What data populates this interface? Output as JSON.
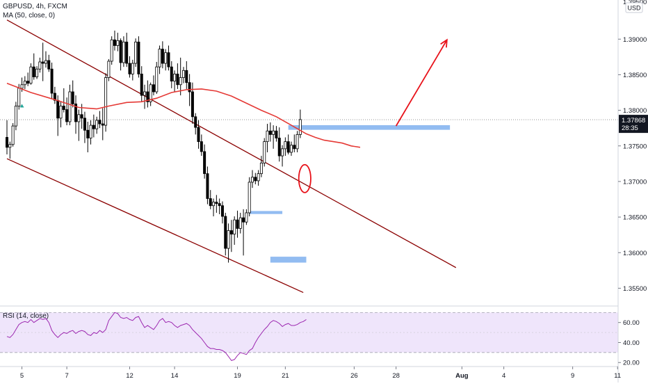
{
  "symbol_legend": "GBPUSD, 4h, FXCM",
  "ma_legend": "MA (50, close, 0)",
  "rsi_legend": "RSI (14, close)",
  "currency_badge": "USD",
  "price_top_partial": "1.39500",
  "price_label": {
    "price": "1.37868",
    "countdown": "28:35"
  },
  "colors": {
    "up_candle": "#ffffff",
    "down_candle": "#000000",
    "wick": "#000000",
    "ma_line": "#e53935",
    "channel_line": "#8b0000",
    "zone": "#7fb0ef",
    "arrow": "#e8121a",
    "rsi_line": "#9c27b0",
    "rsi_band": "#efe5fb",
    "last_price_bg": "#131722",
    "marker": "#26a69a"
  },
  "chart_data": [
    {
      "type": "candlestick",
      "title": "GBPUSD, 4h, FXCM",
      "ylim": [
        1.3525,
        1.3955
      ],
      "y_ticks": [
        "1.39000",
        "1.38500",
        "1.38000",
        "1.37500",
        "1.37000",
        "1.36500",
        "1.36000",
        "1.35500"
      ],
      "x_ticks": [
        "5",
        "7",
        "12",
        "14",
        "19",
        "21",
        "26",
        "28",
        "Aug",
        "4",
        "9",
        "11"
      ],
      "last_price": 1.37868,
      "grid": false,
      "candles": [
        [
          1.3762,
          1.3786,
          1.3738,
          1.3748
        ],
        [
          1.3748,
          1.3756,
          1.3732,
          1.3752
        ],
        [
          1.3752,
          1.3782,
          1.3749,
          1.3778
        ],
        [
          1.3778,
          1.3812,
          1.3772,
          1.3806
        ],
        [
          1.3806,
          1.3837,
          1.3801,
          1.3831
        ],
        [
          1.3831,
          1.3846,
          1.3826,
          1.3836
        ],
        [
          1.3836,
          1.3848,
          1.383,
          1.3841
        ],
        [
          1.3841,
          1.3853,
          1.3834,
          1.3838
        ],
        [
          1.3838,
          1.3866,
          1.3836,
          1.3861
        ],
        [
          1.3861,
          1.388,
          1.3843,
          1.3847
        ],
        [
          1.3847,
          1.3862,
          1.3844,
          1.3858
        ],
        [
          1.3858,
          1.3874,
          1.3853,
          1.3868
        ],
        [
          1.3868,
          1.3895,
          1.3841,
          1.3866
        ],
        [
          1.3866,
          1.3883,
          1.386,
          1.387
        ],
        [
          1.387,
          1.3878,
          1.3854,
          1.3858
        ],
        [
          1.3858,
          1.3867,
          1.3816,
          1.3824
        ],
        [
          1.3824,
          1.3833,
          1.3809,
          1.3814
        ],
        [
          1.3814,
          1.3821,
          1.3764,
          1.3789
        ],
        [
          1.3789,
          1.3812,
          1.3776,
          1.3806
        ],
        [
          1.3806,
          1.3831,
          1.3797,
          1.3801
        ],
        [
          1.3801,
          1.3818,
          1.3779,
          1.3784
        ],
        [
          1.3784,
          1.3836,
          1.3779,
          1.3826
        ],
        [
          1.3826,
          1.3842,
          1.3804,
          1.3809
        ],
        [
          1.3809,
          1.3821,
          1.3767,
          1.3784
        ],
        [
          1.3784,
          1.3801,
          1.3757,
          1.3794
        ],
        [
          1.3794,
          1.3809,
          1.3774,
          1.3789
        ],
        [
          1.3789,
          1.3798,
          1.3754,
          1.3772
        ],
        [
          1.3772,
          1.3784,
          1.3741,
          1.3761
        ],
        [
          1.3761,
          1.3786,
          1.3752,
          1.3779
        ],
        [
          1.3779,
          1.3794,
          1.3762,
          1.3774
        ],
        [
          1.3774,
          1.3791,
          1.3767,
          1.3786
        ],
        [
          1.3786,
          1.3799,
          1.3775,
          1.3781
        ],
        [
          1.3781,
          1.3803,
          1.3758,
          1.3779
        ],
        [
          1.3779,
          1.3852,
          1.377,
          1.3846
        ],
        [
          1.3846,
          1.3872,
          1.3841,
          1.3869
        ],
        [
          1.3869,
          1.3904,
          1.3864,
          1.3899
        ],
        [
          1.3899,
          1.3912,
          1.3884,
          1.3891
        ],
        [
          1.3891,
          1.3909,
          1.3883,
          1.3898
        ],
        [
          1.3898,
          1.3901,
          1.3856,
          1.3867
        ],
        [
          1.3867,
          1.3904,
          1.3861,
          1.3896
        ],
        [
          1.3896,
          1.3909,
          1.3861,
          1.3866
        ],
        [
          1.3866,
          1.3876,
          1.3846,
          1.3851
        ],
        [
          1.3851,
          1.3871,
          1.3842,
          1.3866
        ],
        [
          1.3866,
          1.3901,
          1.3861,
          1.3896
        ],
        [
          1.3896,
          1.3904,
          1.3846,
          1.3851
        ],
        [
          1.3851,
          1.3862,
          1.3812,
          1.3821
        ],
        [
          1.3821,
          1.3836,
          1.3802,
          1.3826
        ],
        [
          1.3826,
          1.3842,
          1.3804,
          1.3812
        ],
        [
          1.3812,
          1.3839,
          1.3806,
          1.3836
        ],
        [
          1.3836,
          1.3849,
          1.3821,
          1.3826
        ],
        [
          1.3826,
          1.3868,
          1.3823,
          1.3861
        ],
        [
          1.3861,
          1.3891,
          1.3851,
          1.3886
        ],
        [
          1.3886,
          1.3897,
          1.3859,
          1.3866
        ],
        [
          1.3866,
          1.3886,
          1.3856,
          1.3881
        ],
        [
          1.3881,
          1.3891,
          1.3856,
          1.3861
        ],
        [
          1.3861,
          1.3869,
          1.3831,
          1.3841
        ],
        [
          1.3841,
          1.3856,
          1.3826,
          1.3851
        ],
        [
          1.3851,
          1.3866,
          1.383,
          1.3836
        ],
        [
          1.3836,
          1.3874,
          1.3821,
          1.3846
        ],
        [
          1.3846,
          1.3861,
          1.3838,
          1.3856
        ],
        [
          1.3856,
          1.3869,
          1.383,
          1.3839
        ],
        [
          1.3839,
          1.3851,
          1.3806,
          1.3826
        ],
        [
          1.3826,
          1.3839,
          1.3781,
          1.3791
        ],
        [
          1.3791,
          1.3796,
          1.3766,
          1.3776
        ],
        [
          1.3776,
          1.3786,
          1.3746,
          1.3756
        ],
        [
          1.3756,
          1.3766,
          1.3736,
          1.3742
        ],
        [
          1.3742,
          1.3752,
          1.3704,
          1.3711
        ],
        [
          1.3711,
          1.3721,
          1.3668,
          1.3676
        ],
        [
          1.3676,
          1.3688,
          1.3661,
          1.3666
        ],
        [
          1.3666,
          1.3676,
          1.3651,
          1.3671
        ],
        [
          1.3671,
          1.3681,
          1.3656,
          1.3669
        ],
        [
          1.3669,
          1.3676,
          1.3654,
          1.3666
        ],
        [
          1.3666,
          1.3672,
          1.3641,
          1.3651
        ],
        [
          1.3651,
          1.3656,
          1.3596,
          1.3606
        ],
        [
          1.3606,
          1.3641,
          1.3586,
          1.3631
        ],
        [
          1.3631,
          1.3646,
          1.3601,
          1.3626
        ],
        [
          1.3626,
          1.3651,
          1.3611,
          1.3646
        ],
        [
          1.3646,
          1.3659,
          1.3621,
          1.3634
        ],
        [
          1.3634,
          1.3656,
          1.3627,
          1.3649
        ],
        [
          1.3649,
          1.3661,
          1.3596,
          1.3643
        ],
        [
          1.3643,
          1.3661,
          1.3639,
          1.3656
        ],
        [
          1.3656,
          1.3706,
          1.3651,
          1.3699
        ],
        [
          1.3699,
          1.3716,
          1.3691,
          1.3706
        ],
        [
          1.3706,
          1.3712,
          1.3696,
          1.3701
        ],
        [
          1.3701,
          1.3716,
          1.3694,
          1.3711
        ],
        [
          1.3711,
          1.3736,
          1.3706,
          1.3726
        ],
        [
          1.3726,
          1.3761,
          1.3721,
          1.3756
        ],
        [
          1.3756,
          1.3781,
          1.3741,
          1.3771
        ],
        [
          1.3771,
          1.3783,
          1.3756,
          1.3766
        ],
        [
          1.3766,
          1.3779,
          1.3746,
          1.3771
        ],
        [
          1.3771,
          1.3778,
          1.3756,
          1.3761
        ],
        [
          1.3761,
          1.3776,
          1.3728,
          1.3736
        ],
        [
          1.3736,
          1.3751,
          1.3721,
          1.3746
        ],
        [
          1.3746,
          1.3762,
          1.3736,
          1.3756
        ],
        [
          1.3756,
          1.3766,
          1.3738,
          1.3741
        ],
        [
          1.3741,
          1.3756,
          1.3736,
          1.3751
        ],
        [
          1.3751,
          1.3766,
          1.3741,
          1.3746
        ],
        [
          1.3746,
          1.3771,
          1.3741,
          1.3766
        ],
        [
          1.3766,
          1.3801,
          1.3761,
          1.3787
        ]
      ],
      "ma50": [
        [
          0,
          1.3838
        ],
        [
          8,
          1.3825
        ],
        [
          16,
          1.3815
        ],
        [
          24,
          1.3804
        ],
        [
          30,
          1.3802
        ],
        [
          34,
          1.3806
        ],
        [
          40,
          1.3811
        ],
        [
          45,
          1.3812
        ],
        [
          50,
          1.3817
        ],
        [
          55,
          1.3825
        ],
        [
          60,
          1.3829
        ],
        [
          65,
          1.383
        ],
        [
          70,
          1.3827
        ],
        [
          75,
          1.382
        ],
        [
          80,
          1.381
        ],
        [
          85,
          1.38
        ],
        [
          90,
          1.3791
        ],
        [
          95,
          1.3779
        ],
        [
          100,
          1.3767
        ],
        [
          103,
          1.3762
        ],
        [
          106,
          1.3758
        ],
        [
          109,
          1.3756
        ],
        [
          112,
          1.3754
        ],
        [
          115,
          1.375
        ],
        [
          118,
          1.3748
        ]
      ],
      "annotations": {
        "channel_upper": [
          [
            0,
            1.3927
          ],
          [
            150,
            1.3579
          ]
        ],
        "channel_lower": [
          [
            0,
            1.3732
          ],
          [
            99,
            1.3544
          ]
        ],
        "resistance_zone": {
          "from": 94,
          "to": 148,
          "low": 1.37726,
          "high": 1.37791
        },
        "zone_mid": {
          "from": 81,
          "to": 92,
          "low": 1.36543,
          "high": 1.36585
        },
        "zone_low": {
          "from": 88,
          "to": 100,
          "low": 1.3586,
          "high": 1.35943
        },
        "arrow": [
          [
            130,
            1.3778
          ],
          [
            147,
            1.3899
          ]
        ],
        "highlight_ellipse": {
          "center": [
            99.5,
            1.3704
          ],
          "rx": 2.0,
          "ry": 0.00196
        }
      }
    },
    {
      "type": "line",
      "title": "RSI (14, close)",
      "ylim": [
        16,
        73
      ],
      "y_ticks": [
        "60.00",
        "40.00",
        "20.00"
      ],
      "band": [
        30,
        70
      ],
      "grid": false,
      "values": [
        46,
        45,
        48,
        53,
        58,
        60,
        61,
        60,
        63,
        60,
        62,
        64,
        63,
        64,
        60,
        52,
        48,
        45,
        48,
        50,
        49,
        51,
        52,
        49,
        51,
        52,
        51,
        48,
        47,
        50,
        49,
        52,
        50,
        53,
        62,
        66,
        70,
        69,
        65,
        64,
        65,
        63,
        62,
        65,
        66,
        60,
        55,
        57,
        55,
        53,
        57,
        62,
        64,
        60,
        61,
        60,
        57,
        55,
        57,
        58,
        59,
        57,
        53,
        50,
        47,
        44,
        40,
        36,
        34,
        34,
        33,
        33,
        32,
        30,
        26,
        22,
        23,
        27,
        30,
        29,
        28,
        32,
        34,
        40,
        45,
        49,
        53,
        56,
        60,
        62,
        61,
        59,
        56,
        58,
        59,
        57,
        57,
        58,
        60,
        61,
        63
      ]
    }
  ]
}
